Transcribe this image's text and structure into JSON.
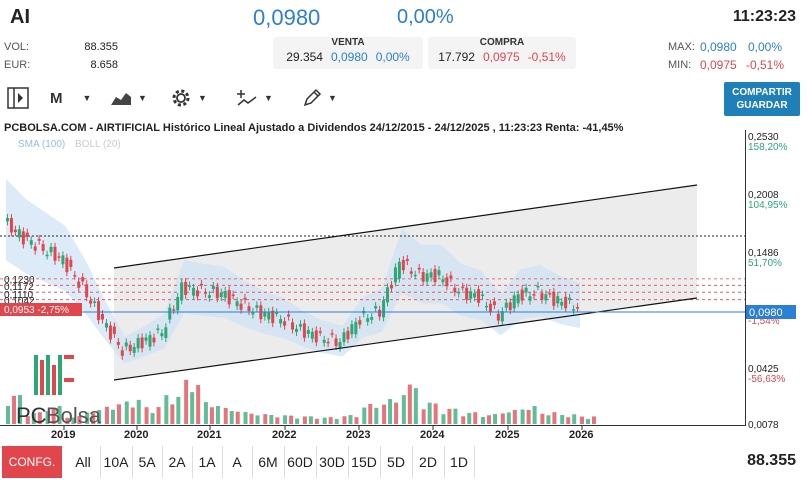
{
  "header": {
    "ticker": "AI",
    "price": "0,0980",
    "change_pct": "0,00%",
    "time": "11:23:23"
  },
  "stats": {
    "vol_label": "VOL:",
    "vol_value": "88.355",
    "eur_label": "EUR:",
    "eur_value": "8.658",
    "max_label": "MAX:",
    "max_price": "0,0980",
    "max_pct": "0,00%",
    "min_label": "MIN:",
    "min_price": "0,0975",
    "min_pct": "-0,51%"
  },
  "venta": {
    "title": "VENTA",
    "qty": "29.354",
    "price": "0,0980",
    "pct": "0,00%"
  },
  "compra": {
    "title": "COMPRA",
    "qty": "17.792",
    "price": "0,0975",
    "pct": "-0,51%"
  },
  "toolbar": {
    "period": "M",
    "share_label_1": "COMPARTIR",
    "share_label_2": "GUARDAR",
    "icons": [
      "sidebar-toggle-icon",
      "area-chart-icon",
      "gear-icon",
      "indicators-icon",
      "pencil-icon"
    ]
  },
  "chart_title": "PCBOLSA.COM - AIRTIFICIAL Histórico Lineal Ajustado a Dividendos 24/12/2015 - 24/12/2025 , 11:23:23 Renta: -41,45%",
  "legend": {
    "sma": "SMA (100)",
    "boll": "BOLL (20)"
  },
  "logo": {
    "pc": "PC",
    "bolsa": "Bolsa"
  },
  "chart_data": {
    "type": "line",
    "x": [
      "2018-10",
      "2019-01",
      "2019-04",
      "2019-07",
      "2019-10",
      "2020-01",
      "2020-04",
      "2020-07",
      "2020-10",
      "2021-01",
      "2021-04",
      "2021-07",
      "2021-10",
      "2022-01",
      "2022-04",
      "2022-07",
      "2022-10",
      "2023-01",
      "2023-04",
      "2023-07",
      "2023-10",
      "2024-01",
      "2024-04",
      "2024-07",
      "2024-10",
      "2025-01",
      "2025-04",
      "2025-07",
      "2025-10",
      "2025-12"
    ],
    "series": [
      {
        "values": [
          0.175,
          0.16,
          0.15,
          0.14,
          0.115,
          0.085,
          0.058,
          0.066,
          0.075,
          0.115,
          0.112,
          0.11,
          0.1,
          0.092,
          0.087,
          0.077,
          0.07,
          0.066,
          0.087,
          0.094,
          0.138,
          0.126,
          0.126,
          0.112,
          0.107,
          0.09,
          0.108,
          0.111,
          0.103,
          0.098
        ]
      }
    ],
    "volume": [
      30,
      12,
      18,
      8,
      14,
      20,
      25,
      18,
      30,
      45,
      22,
      16,
      12,
      10,
      9,
      8,
      7,
      9,
      20,
      25,
      40,
      22,
      16,
      12,
      10,
      14,
      18,
      12,
      10,
      8
    ],
    "x_ticks": [
      "2019",
      "2020",
      "2021",
      "2022",
      "2023",
      "2024",
      "2025",
      "2026"
    ],
    "y_labels_right": [
      {
        "price": "0,2530",
        "pct": "158,20%"
      },
      {
        "price": "0,2008",
        "pct": "104,95%"
      },
      {
        "price": "0,1486",
        "pct": "51,70%"
      },
      {
        "price": "0,0425",
        "pct": "-56,63%"
      },
      {
        "price": "0,0078",
        "pct": ""
      }
    ],
    "current_label": "0,0980",
    "left_labels": [
      "0,1230",
      "0,1172",
      "0,1110",
      "0,1042"
    ],
    "left_tag": "0,0953  -2,75%",
    "partial_pct_label": "-1,54%"
  },
  "bottom": {
    "config": "CONFG.",
    "ranges": [
      "All",
      "10A",
      "5A",
      "2A",
      "1A",
      "A",
      "6M",
      "60D",
      "30D",
      "15D",
      "5D",
      "2D",
      "1D"
    ],
    "volume": "88.355"
  }
}
